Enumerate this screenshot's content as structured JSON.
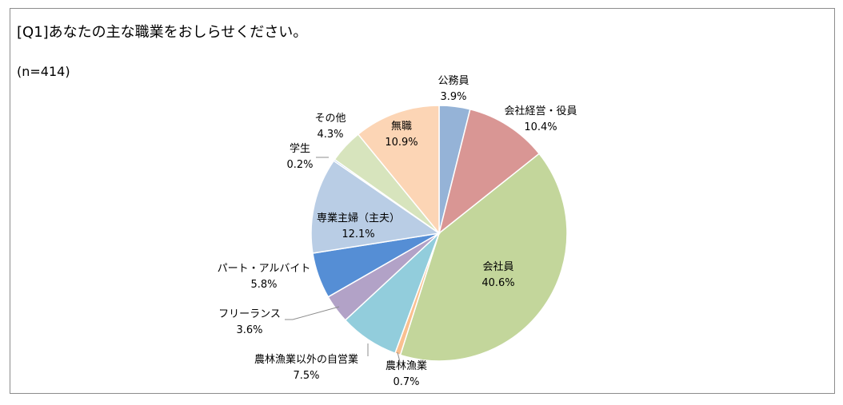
{
  "question": "[Q1]あなたの主な職業をおしらせください。",
  "sample_size": "(n=414)",
  "chart_data": {
    "type": "pie",
    "title": "",
    "start_angle_deg": 0,
    "direction": "clockwise",
    "slices": [
      {
        "label": "公務員",
        "value": 3.9,
        "value_label": "3.9%",
        "color": "#95b3d7"
      },
      {
        "label": "会社経営・役員",
        "value": 10.4,
        "value_label": "10.4%",
        "color": "#d99694"
      },
      {
        "label": "会社員",
        "value": 40.6,
        "value_label": "40.6%",
        "color": "#c3d69b"
      },
      {
        "label": "農林漁業",
        "value": 0.7,
        "value_label": "0.7%",
        "color": "#fac090"
      },
      {
        "label": "農林漁業以外の自営業",
        "value": 7.5,
        "value_label": "7.5%",
        "color": "#92cddc"
      },
      {
        "label": "フリーランス",
        "value": 3.6,
        "value_label": "3.6%",
        "color": "#b2a2c7"
      },
      {
        "label": "パート・アルバイト",
        "value": 5.8,
        "value_label": "5.8%",
        "color": "#558ed5"
      },
      {
        "label": "専業主婦（主夫）",
        "value": 12.1,
        "value_label": "12.1%",
        "color": "#b9cde5"
      },
      {
        "label": "学生",
        "value": 0.2,
        "value_label": "0.2%",
        "color": "#8eb4e3"
      },
      {
        "label": "その他",
        "value": 4.3,
        "value_label": "4.3%",
        "color": "#d7e4bd"
      },
      {
        "label": "無職",
        "value": 10.9,
        "value_label": "10.9%",
        "color": "#fcd5b5"
      }
    ]
  }
}
